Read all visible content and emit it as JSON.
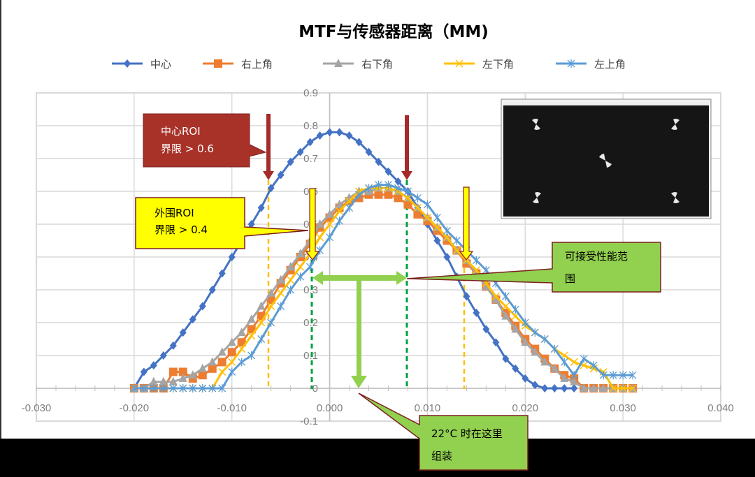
{
  "chart_data": {
    "type": "line",
    "title": "MTF与传感器距离（MM)",
    "xlabel": "",
    "ylabel": "",
    "xlim": [
      -0.03,
      0.04
    ],
    "ylim": [
      -0.1,
      0.9
    ],
    "x_ticks": [
      "-0.030",
      "-0.020",
      "-0.010",
      "0.000",
      "0.010",
      "0.020",
      "0.030",
      "0.040"
    ],
    "y_ticks": [
      "-0.1",
      "0",
      "0.1",
      "0.2",
      "0.3",
      "0.4",
      "0.5",
      "0.6",
      "0.7",
      "0.8",
      "0.9"
    ],
    "grid": true,
    "legend_position": "top",
    "series": [
      {
        "name": "中心",
        "color": "#4472c4",
        "marker": "diamond",
        "x": [
          -0.02,
          -0.019,
          -0.018,
          -0.017,
          -0.016,
          -0.015,
          -0.014,
          -0.013,
          -0.012,
          -0.011,
          -0.01,
          -0.009,
          -0.008,
          -0.007,
          -0.006,
          -0.005,
          -0.004,
          -0.003,
          -0.002,
          -0.001,
          0.0,
          0.001,
          0.002,
          0.003,
          0.004,
          0.005,
          0.006,
          0.007,
          0.008,
          0.009,
          0.01,
          0.011,
          0.012,
          0.013,
          0.014,
          0.015,
          0.016,
          0.017,
          0.018,
          0.019,
          0.02,
          0.021,
          0.022,
          0.023,
          0.024,
          0.025
        ],
        "y": [
          0.0,
          0.05,
          0.07,
          0.1,
          0.13,
          0.17,
          0.21,
          0.25,
          0.3,
          0.35,
          0.4,
          0.45,
          0.5,
          0.55,
          0.61,
          0.65,
          0.69,
          0.72,
          0.75,
          0.77,
          0.78,
          0.78,
          0.77,
          0.75,
          0.72,
          0.69,
          0.66,
          0.63,
          0.6,
          0.55,
          0.5,
          0.45,
          0.4,
          0.34,
          0.28,
          0.23,
          0.18,
          0.14,
          0.09,
          0.06,
          0.03,
          0.01,
          0.0,
          0.0,
          0.0,
          0.0
        ]
      },
      {
        "name": "右上角",
        "color": "#ed7d31",
        "marker": "square",
        "x": [
          -0.02,
          -0.019,
          -0.018,
          -0.017,
          -0.016,
          -0.015,
          -0.014,
          -0.013,
          -0.012,
          -0.011,
          -0.01,
          -0.009,
          -0.008,
          -0.007,
          -0.006,
          -0.005,
          -0.004,
          -0.003,
          -0.002,
          -0.001,
          0.0,
          0.001,
          0.002,
          0.003,
          0.004,
          0.005,
          0.006,
          0.007,
          0.008,
          0.009,
          0.01,
          0.011,
          0.012,
          0.013,
          0.014,
          0.015,
          0.016,
          0.017,
          0.018,
          0.019,
          0.02,
          0.021,
          0.022,
          0.023,
          0.024,
          0.025,
          0.026,
          0.027,
          0.028,
          0.029,
          0.03,
          0.031
        ],
        "y": [
          0.0,
          0.0,
          0.0,
          0.0,
          0.05,
          0.05,
          0.03,
          0.04,
          0.06,
          0.08,
          0.11,
          0.14,
          0.18,
          0.22,
          0.27,
          0.32,
          0.36,
          0.4,
          0.44,
          0.49,
          0.52,
          0.55,
          0.57,
          0.58,
          0.59,
          0.59,
          0.59,
          0.58,
          0.56,
          0.53,
          0.51,
          0.48,
          0.45,
          0.42,
          0.38,
          0.35,
          0.31,
          0.27,
          0.23,
          0.19,
          0.15,
          0.12,
          0.09,
          0.06,
          0.04,
          0.03,
          0.0,
          0.0,
          0.0,
          0.0,
          0.0,
          0.0
        ]
      },
      {
        "name": "右下角",
        "color": "#a5a5a5",
        "marker": "triangle",
        "x": [
          -0.02,
          -0.019,
          -0.018,
          -0.017,
          -0.016,
          -0.015,
          -0.014,
          -0.013,
          -0.012,
          -0.011,
          -0.01,
          -0.009,
          -0.008,
          -0.007,
          -0.006,
          -0.005,
          -0.004,
          -0.003,
          -0.002,
          -0.001,
          0.0,
          0.001,
          0.002,
          0.003,
          0.004,
          0.005,
          0.006,
          0.007,
          0.008,
          0.009,
          0.01,
          0.011,
          0.012,
          0.013,
          0.014,
          0.015,
          0.016,
          0.017,
          0.018,
          0.019,
          0.02,
          0.021,
          0.022,
          0.023,
          0.024,
          0.025,
          0.026,
          0.027,
          0.028,
          0.029,
          0.03,
          0.031
        ],
        "y": [
          0.0,
          0.0,
          0.02,
          0.02,
          0.02,
          0.03,
          0.04,
          0.06,
          0.08,
          0.11,
          0.14,
          0.17,
          0.21,
          0.25,
          0.29,
          0.33,
          0.37,
          0.41,
          0.45,
          0.5,
          0.53,
          0.56,
          0.58,
          0.6,
          0.6,
          0.61,
          0.61,
          0.6,
          0.58,
          0.55,
          0.52,
          0.49,
          0.46,
          0.42,
          0.39,
          0.35,
          0.31,
          0.27,
          0.22,
          0.18,
          0.14,
          0.11,
          0.08,
          0.06,
          0.03,
          0.02,
          0.0,
          0.0,
          0.0,
          0.0,
          0.0,
          0.0
        ]
      },
      {
        "name": "左下角",
        "color": "#ffc000",
        "marker": "x",
        "x": [
          -0.02,
          -0.019,
          -0.018,
          -0.017,
          -0.016,
          -0.015,
          -0.014,
          -0.013,
          -0.012,
          -0.011,
          -0.01,
          -0.009,
          -0.008,
          -0.007,
          -0.006,
          -0.005,
          -0.004,
          -0.003,
          -0.002,
          -0.001,
          0.0,
          0.001,
          0.002,
          0.003,
          0.004,
          0.005,
          0.006,
          0.007,
          0.008,
          0.009,
          0.01,
          0.011,
          0.012,
          0.013,
          0.014,
          0.015,
          0.016,
          0.017,
          0.018,
          0.019,
          0.02,
          0.021,
          0.022,
          0.023,
          0.024,
          0.025,
          0.026,
          0.027,
          0.028,
          0.029,
          0.03,
          0.031
        ],
        "y": [
          0.0,
          0.0,
          0.0,
          0.0,
          0.0,
          0.0,
          0.0,
          0.0,
          0.0,
          0.05,
          0.08,
          0.12,
          0.16,
          0.2,
          0.25,
          0.29,
          0.33,
          0.37,
          0.41,
          0.46,
          0.5,
          0.54,
          0.57,
          0.6,
          0.61,
          0.61,
          0.61,
          0.6,
          0.58,
          0.55,
          0.52,
          0.49,
          0.46,
          0.42,
          0.39,
          0.36,
          0.32,
          0.28,
          0.25,
          0.22,
          0.19,
          0.17,
          0.15,
          0.12,
          0.1,
          0.08,
          0.07,
          0.06,
          0.05,
          0.0,
          0.0,
          0.0
        ]
      },
      {
        "name": "左上角",
        "color": "#5b9bd5",
        "marker": "star",
        "x": [
          -0.02,
          -0.019,
          -0.018,
          -0.017,
          -0.016,
          -0.015,
          -0.014,
          -0.013,
          -0.012,
          -0.011,
          -0.01,
          -0.009,
          -0.008,
          -0.007,
          -0.006,
          -0.005,
          -0.004,
          -0.003,
          -0.002,
          -0.001,
          0.0,
          0.001,
          0.002,
          0.003,
          0.004,
          0.005,
          0.006,
          0.007,
          0.008,
          0.009,
          0.01,
          0.011,
          0.012,
          0.013,
          0.014,
          0.015,
          0.016,
          0.017,
          0.018,
          0.019,
          0.02,
          0.021,
          0.022,
          0.023,
          0.024,
          0.025,
          0.026,
          0.027,
          0.028,
          0.029,
          0.03,
          0.031
        ],
        "y": [
          0.0,
          0.0,
          0.0,
          0.0,
          0.0,
          0.0,
          0.0,
          0.0,
          0.0,
          0.0,
          0.05,
          0.08,
          0.1,
          0.15,
          0.2,
          0.25,
          0.3,
          0.34,
          0.37,
          0.42,
          0.46,
          0.51,
          0.55,
          0.59,
          0.61,
          0.62,
          0.62,
          0.61,
          0.6,
          0.58,
          0.56,
          0.52,
          0.48,
          0.45,
          0.42,
          0.39,
          0.36,
          0.32,
          0.28,
          0.24,
          0.2,
          0.17,
          0.15,
          0.12,
          0.08,
          0.04,
          0.09,
          0.07,
          0.04,
          0.04,
          0.04,
          0.04
        ]
      }
    ]
  },
  "annotations": {
    "center_roi": {
      "line1": "中心ROI",
      "line2": "界限 > 0.6",
      "color": "#a52a2a"
    },
    "outer_roi": {
      "line1": "外围ROI",
      "line2": "界限 > 0.4",
      "color": "#ffff00"
    },
    "acceptable_range": {
      "line1": "可接受性能范",
      "line2": "围",
      "color": "#92d050"
    },
    "assembly_point": {
      "line1": "22°C 时在这里",
      "line2": "组装",
      "color": "#92d050"
    }
  }
}
